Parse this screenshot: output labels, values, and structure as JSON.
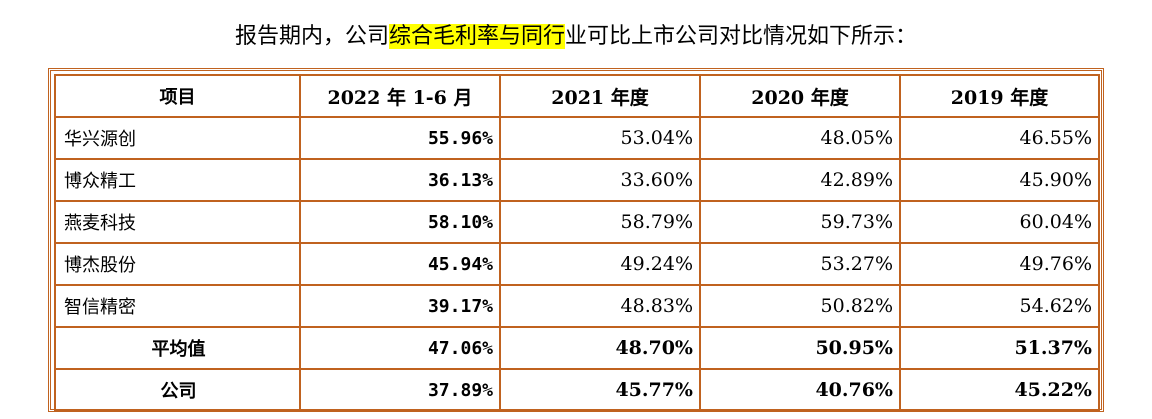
{
  "intro": {
    "before": "报告期内，公司",
    "highlight": "综合毛利率与同行",
    "after": "业可比上市公司对比情况如下所示："
  },
  "table": {
    "headers": [
      "项目",
      "2022 年 1-6 月",
      "2021 年度",
      "2020 年度",
      "2019 年度"
    ],
    "rows": [
      {
        "name": "华兴源创",
        "values": [
          "55.96%",
          "53.04%",
          "48.05%",
          "46.55%"
        ]
      },
      {
        "name": "博众精工",
        "values": [
          "36.13%",
          "33.60%",
          "42.89%",
          "45.90%"
        ]
      },
      {
        "name": "燕麦科技",
        "values": [
          "58.10%",
          "58.79%",
          "59.73%",
          "60.04%"
        ]
      },
      {
        "name": "博杰股份",
        "values": [
          "45.94%",
          "49.24%",
          "53.27%",
          "49.76%"
        ]
      },
      {
        "name": "智信精密",
        "values": [
          "39.17%",
          "48.83%",
          "50.82%",
          "54.62%"
        ]
      }
    ],
    "average": {
      "name": "平均值",
      "values": [
        "47.06%",
        "48.70%",
        "50.95%",
        "51.37%"
      ]
    },
    "company": {
      "name": "公司",
      "values": [
        "37.89%",
        "45.77%",
        "40.76%",
        "45.22%"
      ]
    }
  },
  "colors": {
    "border": "#c0621f",
    "highlight": "#ffff00"
  }
}
